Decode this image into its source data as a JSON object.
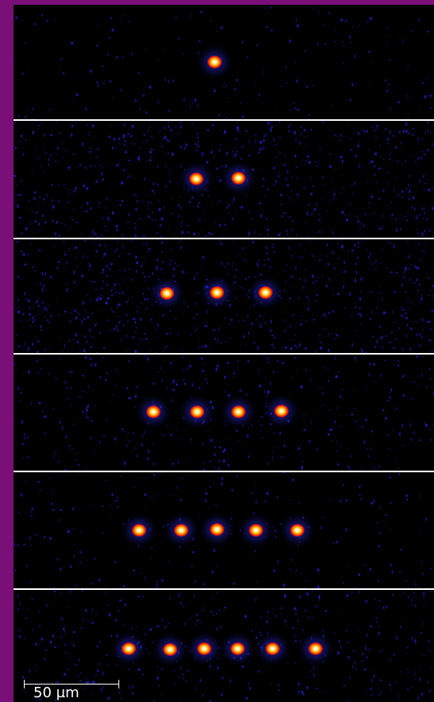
{
  "image": {
    "subject": "ion-crystals",
    "colors": {
      "frame": "#7a0f78",
      "background": "#000000",
      "separator": "#ffffff",
      "noise": "#2222cc",
      "ion_core": "#ffffff",
      "ion_halo": "#ff2a00"
    },
    "panels": [
      {
        "ion_count": 1
      },
      {
        "ion_count": 2
      },
      {
        "ion_count": 3
      },
      {
        "ion_count": 4
      },
      {
        "ion_count": 5
      },
      {
        "ion_count": 6
      }
    ],
    "scale_bar": {
      "label": "50 µm"
    }
  }
}
